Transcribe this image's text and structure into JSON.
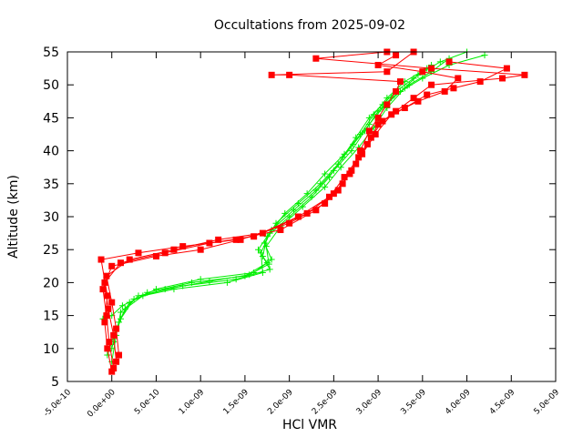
{
  "chart_data": {
    "type": "line",
    "title": "Occultations from 2025-09-02",
    "xlabel": "HCl VMR",
    "ylabel": "Altitude (km)",
    "xlim": [
      -5e-10,
      5e-09
    ],
    "ylim": [
      5,
      55
    ],
    "x_ticks": [
      "-5.0e-10",
      "0.0e+00",
      "5.0e-10",
      "1.0e-09",
      "1.5e-09",
      "2.0e-09",
      "2.5e-09",
      "3.0e-09",
      "3.5e-09",
      "4.0e-09",
      "4.5e-09",
      "5.0e-09"
    ],
    "y_ticks": [
      "5",
      "10",
      "15",
      "20",
      "25",
      "30",
      "35",
      "40",
      "45",
      "50",
      "55"
    ],
    "grid": false,
    "legend": "none",
    "series": [
      {
        "color": "#00ee00",
        "marker": "plus",
        "profiles": [
          {
            "x": [
              0.0,
              5e-11,
              1e-10,
              3e-10,
              8e-10,
              1.4e-09,
              1.78e-09,
              1.7e-09,
              1.75e-09,
              2e-09,
              2.25e-09,
              2.45e-09,
              2.6e-09,
              2.75e-09,
              2.9e-09,
              3.05e-09,
              3.2e-09,
              3.4e-09,
              3.6e-09
            ],
            "y": [
              8,
              12,
              15.5,
              18,
              19.5,
              20.5,
              22,
              24,
              27,
              30,
              33,
              36,
              39,
              42,
              45,
              47,
              49,
              51,
              53
            ]
          },
          {
            "x": [
              -5e-11,
              5e-11,
              1.5e-10,
              4e-10,
              9e-10,
              1.5e-09,
              1.75e-09,
              1.65e-09,
              1.8e-09,
              2.05e-09,
              2.3e-09,
              2.5e-09,
              2.7e-09,
              2.85e-09,
              3e-09,
              3.15e-09,
              3.35e-09,
              3.6e-09,
              3.8e-09
            ],
            "y": [
              9,
              13,
              16,
              18.5,
              20,
              21,
              23,
              25,
              28,
              31,
              34,
              37,
              40,
              43,
              46,
              48,
              50,
              52,
              54
            ]
          },
          {
            "x": [
              0.0,
              8e-11,
              2e-10,
              5e-10,
              1e-09,
              1.6e-09,
              1.8e-09,
              1.72e-09,
              1.85e-09,
              2.1e-09,
              2.35e-09,
              2.55e-09,
              2.72e-09,
              2.9e-09,
              3.05e-09,
              3.25e-09,
              3.5e-09,
              3.8e-09,
              4.2e-09
            ],
            "y": [
              10,
              14,
              17,
              19,
              20.5,
              21.5,
              23.5,
              26,
              29,
              32,
              35,
              38,
              41,
              44,
              46.5,
              49,
              51,
              53,
              54.5
            ]
          },
          {
            "x": [
              -1e-10,
              0.0,
              1.2e-10,
              3.5e-10,
              7e-10,
              1.3e-09,
              1.7e-09,
              1.68e-09,
              1.78e-09,
              1.95e-09,
              2.2e-09,
              2.4e-09,
              2.62e-09,
              2.8e-09,
              2.95e-09,
              3.1e-09,
              3.3e-09,
              3.55e-09
            ],
            "y": [
              14.5,
              15,
              16.5,
              18,
              19,
              20,
              21.5,
              24.5,
              27.5,
              30.5,
              33.5,
              36.5,
              39.5,
              42.5,
              45.5,
              48,
              50.5,
              52.5
            ]
          },
          {
            "x": [
              2e-11,
              1e-10,
              2.5e-10,
              6e-10,
              1.1e-09,
              1.55e-09,
              1.77e-09,
              1.74e-09,
              1.9e-09,
              2.15e-09,
              2.4e-09,
              2.58e-09,
              2.78e-09,
              2.95e-09,
              3.1e-09,
              3.3e-09,
              3.45e-09,
              3.7e-09,
              4e-09
            ],
            "y": [
              11,
              14.5,
              17.5,
              19,
              20.2,
              21.2,
              22.8,
              25.5,
              28.5,
              31.5,
              34.5,
              37.5,
              40.5,
              43.5,
              46.5,
              49.5,
              51.5,
              53.5,
              55
            ]
          }
        ]
      },
      {
        "color": "#ff0000",
        "marker": "filled-square",
        "profiles": [
          {
            "x": [
              0.0,
              -5e-11,
              -8e-11,
              -5e-11,
              -1.2e-10,
              3e-10,
              8e-10,
              1.4e-09,
              1.9e-09,
              2.3e-09,
              2.55e-09,
              2.7e-09,
              2.8e-09,
              2.9e-09,
              3e-09,
              3.1e-09,
              3.2e-09,
              3.25e-09,
              2e-09,
              1.8e-09,
              3.1e-09,
              3.4e-09
            ],
            "y": [
              6.5,
              10,
              14,
              18,
              23.5,
              24.5,
              25.5,
              26.5,
              28,
              31,
              34,
              37,
              40,
              43,
              45,
              47,
              49,
              50.5,
              51.5,
              51.5,
              52,
              55
            ]
          },
          {
            "x": [
              2e-11,
              -3e-11,
              -6e-11,
              -1e-10,
              0.0,
              5e-10,
              1e-09,
              1.45e-09,
              2e-09,
              2.4e-09,
              2.6e-09,
              2.75e-09,
              2.88e-09,
              3e-09,
              3.2e-09,
              3.4e-09,
              3.6e-09,
              4.4e-09,
              4.65e-09,
              3.6e-09,
              2.3e-09,
              3.1e-09
            ],
            "y": [
              7,
              11,
              15,
              19,
              22.5,
              24,
              25,
              26.5,
              29,
              32,
              35,
              38,
              41,
              44,
              46,
              48,
              50,
              51,
              51.5,
              52.5,
              54,
              55
            ]
          },
          {
            "x": [
              5e-11,
              2e-11,
              -4e-11,
              -8e-11,
              1e-10,
              6e-10,
              1.1e-09,
              1.6e-09,
              2.1e-09,
              2.45e-09,
              2.62e-09,
              2.78e-09,
              2.92e-09,
              3.05e-09,
              3.3e-09,
              3.55e-09,
              3.85e-09,
              4.15e-09,
              4.45e-09,
              3.8e-09
            ],
            "y": [
              8,
              12,
              16,
              20,
              23,
              24.5,
              26,
              27,
              30,
              33,
              36,
              39,
              42,
              44.5,
              46.5,
              48.5,
              49.5,
              50.5,
              52.5,
              53.5
            ]
          },
          {
            "x": [
              8e-11,
              5e-11,
              0.0,
              -6e-11,
              2e-10,
              7e-10,
              1.2e-09,
              1.7e-09,
              2.2e-09,
              2.5e-09,
              2.68e-09,
              2.82e-09,
              2.97e-09,
              3.15e-09,
              3.45e-09,
              3.75e-09,
              3.9e-09,
              3.5e-09,
              3e-09,
              3.2e-09
            ],
            "y": [
              9,
              13,
              17,
              21,
              23.5,
              25,
              26.5,
              27.5,
              30.5,
              33.5,
              36.5,
              39.5,
              42.5,
              45.5,
              47.5,
              49,
              51,
              52,
              53,
              54.5
            ]
          }
        ]
      }
    ]
  }
}
